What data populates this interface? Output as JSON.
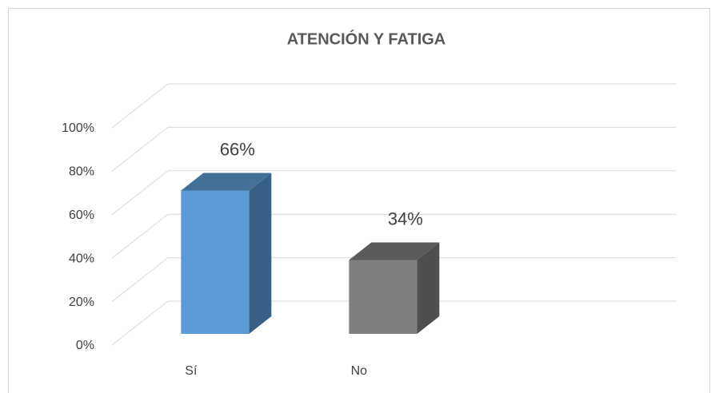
{
  "chart_data": {
    "type": "bar3d",
    "title": "ATENCIÓN Y FATIGA",
    "categories": [
      "Sí",
      "No"
    ],
    "values": [
      66,
      34
    ],
    "value_labels": [
      "66%",
      "34%"
    ],
    "colors": [
      "#5b9bd5",
      "#7f7f7f"
    ],
    "ylim": [
      0,
      100
    ],
    "yticks": [
      {
        "value": 0,
        "label": "0%"
      },
      {
        "value": 20,
        "label": "20%"
      },
      {
        "value": 40,
        "label": "40%"
      },
      {
        "value": 60,
        "label": "60%"
      },
      {
        "value": 80,
        "label": "80%"
      },
      {
        "value": 100,
        "label": "100%"
      }
    ],
    "grid": true
  }
}
